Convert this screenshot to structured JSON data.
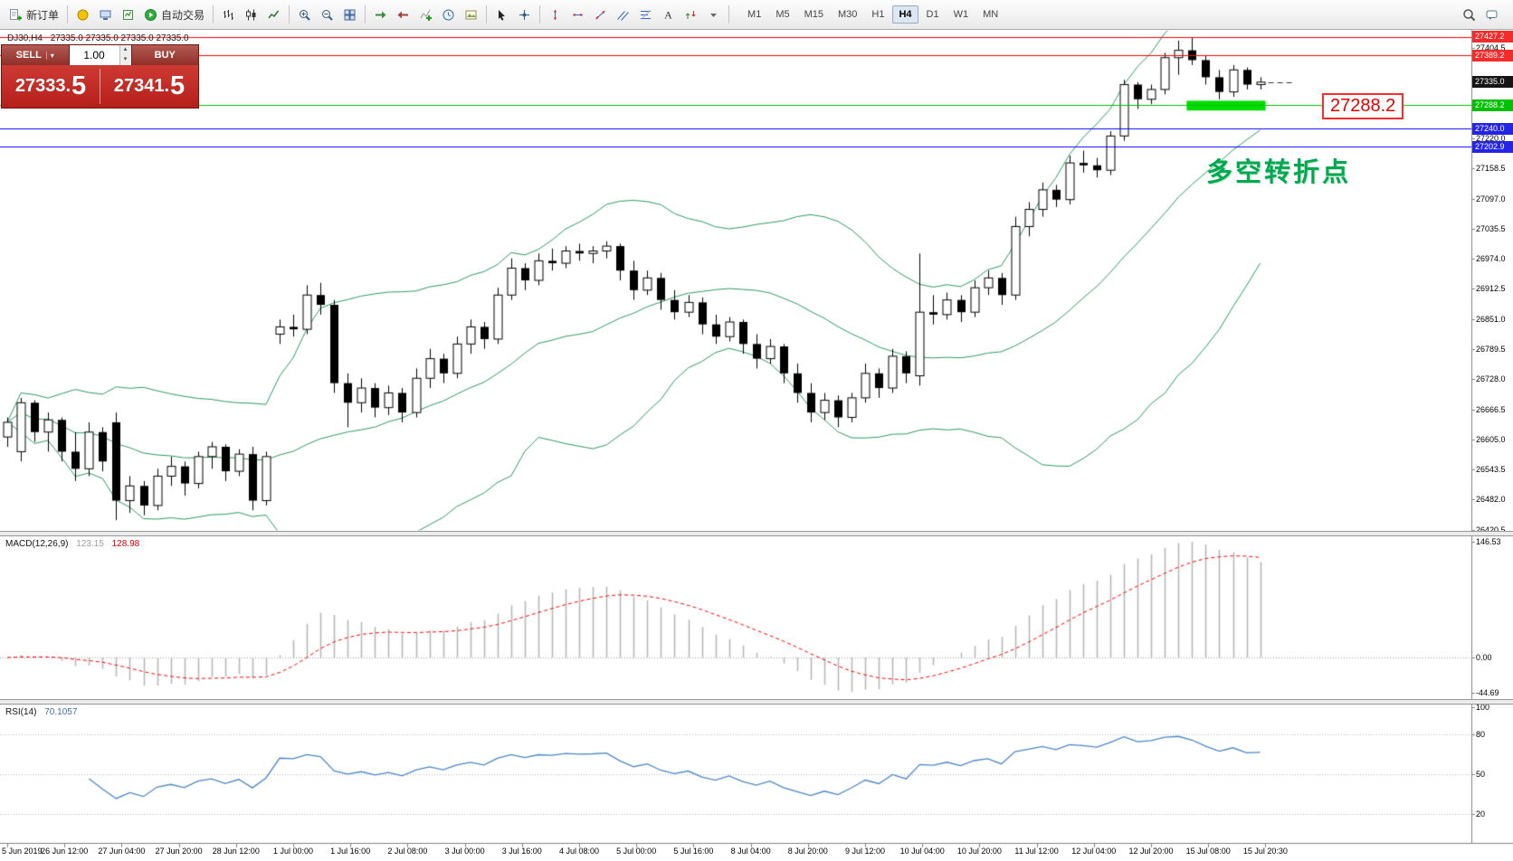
{
  "toolbar": {
    "items": [
      {
        "name": "new-order-button",
        "icon": "new-order-icon",
        "label": "新订单"
      },
      {
        "name": "separator"
      },
      {
        "name": "metaeditor-button",
        "icon": "metaeditor-icon"
      },
      {
        "name": "terminal-button",
        "icon": "terminal-icon"
      },
      {
        "name": "strategy-tester-button",
        "icon": "tester-icon"
      },
      {
        "name": "autotrade-button",
        "icon": "autotrade-icon",
        "label": "自动交易"
      },
      {
        "name": "separator"
      },
      {
        "name": "bar-chart-button",
        "icon": "bar-chart-icon"
      },
      {
        "name": "candlestick-chart-button",
        "icon": "candlestick-chart-icon"
      },
      {
        "name": "line-chart-button",
        "icon": "line-chart-icon"
      },
      {
        "name": "separator"
      },
      {
        "name": "zoom-in-button",
        "icon": "zoom-in-icon"
      },
      {
        "name": "zoom-out-button",
        "icon": "zoom-out-icon"
      },
      {
        "name": "tile-windows-button",
        "icon": "tile-windows-icon"
      },
      {
        "name": "separator"
      },
      {
        "name": "auto-scroll-button",
        "icon": "auto-scroll-icon"
      },
      {
        "name": "chart-shift-button",
        "icon": "chart-shift-icon"
      },
      {
        "name": "indicators-button",
        "icon": "indicators-icon"
      },
      {
        "name": "periods-button",
        "icon": "periods-icon"
      },
      {
        "name": "templates-button",
        "icon": "templates-icon"
      },
      {
        "name": "separator"
      },
      {
        "name": "cursor-button",
        "icon": "cursor-icon"
      },
      {
        "name": "crosshair-button",
        "icon": "crosshair-icon"
      },
      {
        "name": "separator"
      },
      {
        "name": "vertical-line-button",
        "icon": "vline-icon"
      },
      {
        "name": "horizontal-line-button",
        "icon": "hline-icon"
      },
      {
        "name": "trendline-button",
        "icon": "trendline-icon"
      },
      {
        "name": "channel-button",
        "icon": "channel-icon"
      },
      {
        "name": "fibonacci-button",
        "icon": "fibo-icon"
      },
      {
        "name": "text-button",
        "icon": "text-icon"
      },
      {
        "name": "arrows-button",
        "icon": "arrows-icon"
      },
      {
        "name": "shapes-dropdown",
        "icon": "dropdown-icon"
      },
      {
        "name": "separator"
      }
    ],
    "timeframes": [
      "M1",
      "M5",
      "M15",
      "M30",
      "H1",
      "H4",
      "D1",
      "W1",
      "MN"
    ],
    "active_timeframe": "H4",
    "right_items": [
      {
        "name": "search-button",
        "icon": "search-icon"
      },
      {
        "name": "chat-button",
        "icon": "chat-icon"
      }
    ]
  },
  "chart_header": {
    "title": "DJ30,H4",
    "ohlc": "27335.0 27335.0 27335.0 27335.0"
  },
  "trade_widget": {
    "sell_label": "SELL",
    "buy_label": "BUY",
    "volume": "1.00",
    "sell_price_main": "27333.",
    "sell_price_pip": "5",
    "buy_price_main": "27341.",
    "buy_price_pip": "5",
    "arrows": {
      "dropdown": "▾",
      "up": "▴",
      "down": "▾"
    }
  },
  "annotations": {
    "price_label": "27288.2",
    "note": "多空转折点"
  },
  "chart": {
    "colors": {
      "bollinger": "#2a9a5f",
      "macd_hist": "#b8b8b8",
      "macd_signal": "#ff0000",
      "rsi": "#4a86c8",
      "candle_up": "#ffffff",
      "candle_down": "#000000"
    },
    "levels": [
      {
        "price": 27427.2,
        "color": "#ff0000",
        "label": "27427.2"
      },
      {
        "price": 27389.2,
        "color": "#ff0000",
        "label": "27389.2"
      },
      {
        "price": 27288.2,
        "color": "#00c000",
        "label": "27288.2"
      },
      {
        "price": 27240.0,
        "color": "#0000ff",
        "label": "27240.0"
      },
      {
        "price": 27202.9,
        "color": "#0000ff",
        "label": "27202.9"
      }
    ],
    "current_price": {
      "value": 27335.0,
      "label": "27335.0"
    },
    "badges": [
      {
        "label": "27427.2",
        "price": 27427.2,
        "bg": "#f32b2b"
      },
      {
        "label": "27389.2",
        "price": 27389.2,
        "bg": "#f32b2b"
      },
      {
        "label": "27335.0",
        "price": 27335.0,
        "bg": "#151515"
      },
      {
        "label": "27288.2",
        "price": 27288.2,
        "bg": "#00c000"
      },
      {
        "label": "27240.0",
        "price": 27240.0,
        "bg": "#2424e8"
      },
      {
        "label": "27202.9",
        "price": 27202.9,
        "bg": "#2424e8"
      }
    ],
    "price_ticks": [
      "27404.5",
      "27220.0",
      "27158.5",
      "27097.0",
      "27035.5",
      "26974.0",
      "26912.5",
      "26851.0",
      "26789.5",
      "26728.0",
      "26666.5",
      "26605.0",
      "26543.5",
      "26482.0",
      "26420.5"
    ],
    "time_ticks": [
      "5 Jun 2019",
      "26 Jun 12:00",
      "27 Jun 04:00",
      "27 Jun 20:00",
      "28 Jun 12:00",
      "1 Jul 00:00",
      "1 Jul 16:00",
      "2 Jul 08:00",
      "3 Jul 00:00",
      "3 Jul 16:00",
      "4 Jul 08:00",
      "5 Jul 00:00",
      "5 Jul 16:00",
      "8 Jul 04:00",
      "8 Jul 20:00",
      "9 Jul 12:00",
      "10 Jul 04:00",
      "10 Jul 20:00",
      "11 Jul 12:00",
      "12 Jul 04:00",
      "12 Jul 20:00",
      "15 Jul 08:00",
      "15 Jul 20:30"
    ],
    "highlight": {
      "start_index": 87,
      "end_index": 92,
      "price_top": 27297,
      "price_bottom": 27277,
      "color": "#00dd00"
    }
  },
  "macd_panel": {
    "label": "MACD(12,26,9)",
    "main": "123.15",
    "signal": "128.98",
    "ticks": [
      "146.53",
      "0.00",
      "-44.69"
    ]
  },
  "rsi_panel": {
    "label": "RSI(14)",
    "value": "70.1057",
    "ticks": [
      "100",
      "80",
      "50",
      "20"
    ]
  },
  "chart_data": {
    "type": "candlestick",
    "symbol": "DJ30",
    "timeframe": "H4",
    "price_range": [
      26420,
      27440
    ],
    "bollinger": {
      "period": 20,
      "deviation": 2
    },
    "macd": {
      "fast": 12,
      "slow": 26,
      "signal": 9,
      "main": 123.15,
      "signal_value": 128.98,
      "display_max": 146.53,
      "display_min": -44.69
    },
    "rsi": {
      "period": 14,
      "value": 70.1057,
      "levels": [
        80,
        50,
        20
      ]
    },
    "candles": [
      [
        26610,
        26650,
        26590,
        26640
      ],
      [
        26580,
        26690,
        26560,
        26680
      ],
      [
        26680,
        26685,
        26600,
        26620
      ],
      [
        26620,
        26660,
        26580,
        26645
      ],
      [
        26645,
        26650,
        26560,
        26580
      ],
      [
        26580,
        26620,
        26520,
        26545
      ],
      [
        26545,
        26640,
        26530,
        26620
      ],
      [
        26620,
        26630,
        26540,
        26560
      ],
      [
        26640,
        26660,
        26440,
        26480
      ],
      [
        26480,
        26530,
        26455,
        26510
      ],
      [
        26510,
        26520,
        26450,
        26470
      ],
      [
        26470,
        26545,
        26460,
        26530
      ],
      [
        26530,
        26570,
        26510,
        26550
      ],
      [
        26550,
        26560,
        26490,
        26515
      ],
      [
        26515,
        26580,
        26505,
        26570
      ],
      [
        26570,
        26600,
        26545,
        26590
      ],
      [
        26590,
        26595,
        26520,
        26540
      ],
      [
        26540,
        26585,
        26530,
        26575
      ],
      [
        26575,
        26590,
        26460,
        26480
      ],
      [
        26480,
        26580,
        26470,
        26570
      ],
      [
        26820,
        26850,
        26800,
        26835
      ],
      [
        26835,
        26860,
        26815,
        26830
      ],
      [
        26830,
        26920,
        26820,
        26900
      ],
      [
        26900,
        26925,
        26860,
        26880
      ],
      [
        26880,
        26890,
        26700,
        26720
      ],
      [
        26720,
        26740,
        26630,
        26680
      ],
      [
        26680,
        26730,
        26660,
        26710
      ],
      [
        26710,
        26720,
        26650,
        26670
      ],
      [
        26670,
        26715,
        26655,
        26700
      ],
      [
        26700,
        26710,
        26640,
        26660
      ],
      [
        26660,
        26750,
        26650,
        26730
      ],
      [
        26730,
        26790,
        26710,
        26770
      ],
      [
        26770,
        26780,
        26720,
        26740
      ],
      [
        26740,
        26815,
        26730,
        26800
      ],
      [
        26800,
        26850,
        26780,
        26835
      ],
      [
        26835,
        26845,
        26790,
        26810
      ],
      [
        26810,
        26915,
        26800,
        26900
      ],
      [
        26900,
        26975,
        26890,
        26955
      ],
      [
        26955,
        26965,
        26910,
        26930
      ],
      [
        26930,
        26985,
        26920,
        26970
      ],
      [
        26970,
        26995,
        26950,
        26965
      ],
      [
        26965,
        27000,
        26955,
        26990
      ],
      [
        26990,
        27005,
        26970,
        26985
      ],
      [
        26985,
        27000,
        26965,
        26990
      ],
      [
        26990,
        27010,
        26975,
        27000
      ],
      [
        27000,
        27005,
        26930,
        26950
      ],
      [
        26950,
        26970,
        26890,
        26910
      ],
      [
        26910,
        26950,
        26900,
        26935
      ],
      [
        26935,
        26945,
        26870,
        26890
      ],
      [
        26890,
        26910,
        26850,
        26865
      ],
      [
        26865,
        26900,
        26855,
        26885
      ],
      [
        26885,
        26895,
        26820,
        26840
      ],
      [
        26840,
        26860,
        26800,
        26815
      ],
      [
        26815,
        26855,
        26805,
        26845
      ],
      [
        26845,
        26850,
        26780,
        26800
      ],
      [
        26800,
        26820,
        26750,
        26770
      ],
      [
        26770,
        26810,
        26760,
        26795
      ],
      [
        26795,
        26800,
        26720,
        26740
      ],
      [
        26740,
        26760,
        26680,
        26700
      ],
      [
        26700,
        26720,
        26640,
        26660
      ],
      [
        26660,
        26700,
        26645,
        26685
      ],
      [
        26685,
        26695,
        26630,
        26650
      ],
      [
        26650,
        26700,
        26640,
        26690
      ],
      [
        26690,
        26760,
        26680,
        26740
      ],
      [
        26740,
        26750,
        26690,
        26710
      ],
      [
        26710,
        26790,
        26700,
        26775
      ],
      [
        26775,
        26785,
        26720,
        26740
      ],
      [
        26735,
        26985,
        26715,
        26865
      ],
      [
        26865,
        26900,
        26840,
        26860
      ],
      [
        26860,
        26905,
        26850,
        26890
      ],
      [
        26890,
        26900,
        26845,
        26865
      ],
      [
        26865,
        26930,
        26855,
        26915
      ],
      [
        26915,
        26950,
        26900,
        26935
      ],
      [
        26935,
        26945,
        26880,
        26900
      ],
      [
        26900,
        27060,
        26890,
        27040
      ],
      [
        27040,
        27090,
        27020,
        27075
      ],
      [
        27075,
        27130,
        27060,
        27115
      ],
      [
        27115,
        27125,
        27080,
        27095
      ],
      [
        27095,
        27185,
        27085,
        27170
      ],
      [
        27170,
        27195,
        27150,
        27165
      ],
      [
        27165,
        27180,
        27140,
        27155
      ],
      [
        27155,
        27235,
        27145,
        27225
      ],
      [
        27225,
        27340,
        27215,
        27330
      ],
      [
        27330,
        27335,
        27280,
        27300
      ],
      [
        27300,
        27330,
        27290,
        27320
      ],
      [
        27320,
        27395,
        27310,
        27385
      ],
      [
        27385,
        27420,
        27350,
        27400
      ],
      [
        27400,
        27427,
        27370,
        27380
      ],
      [
        27380,
        27390,
        27330,
        27345
      ],
      [
        27345,
        27360,
        27300,
        27315
      ],
      [
        27315,
        27370,
        27305,
        27360
      ],
      [
        27360,
        27365,
        27320,
        27330
      ],
      [
        27330,
        27345,
        27320,
        27335
      ]
    ]
  }
}
